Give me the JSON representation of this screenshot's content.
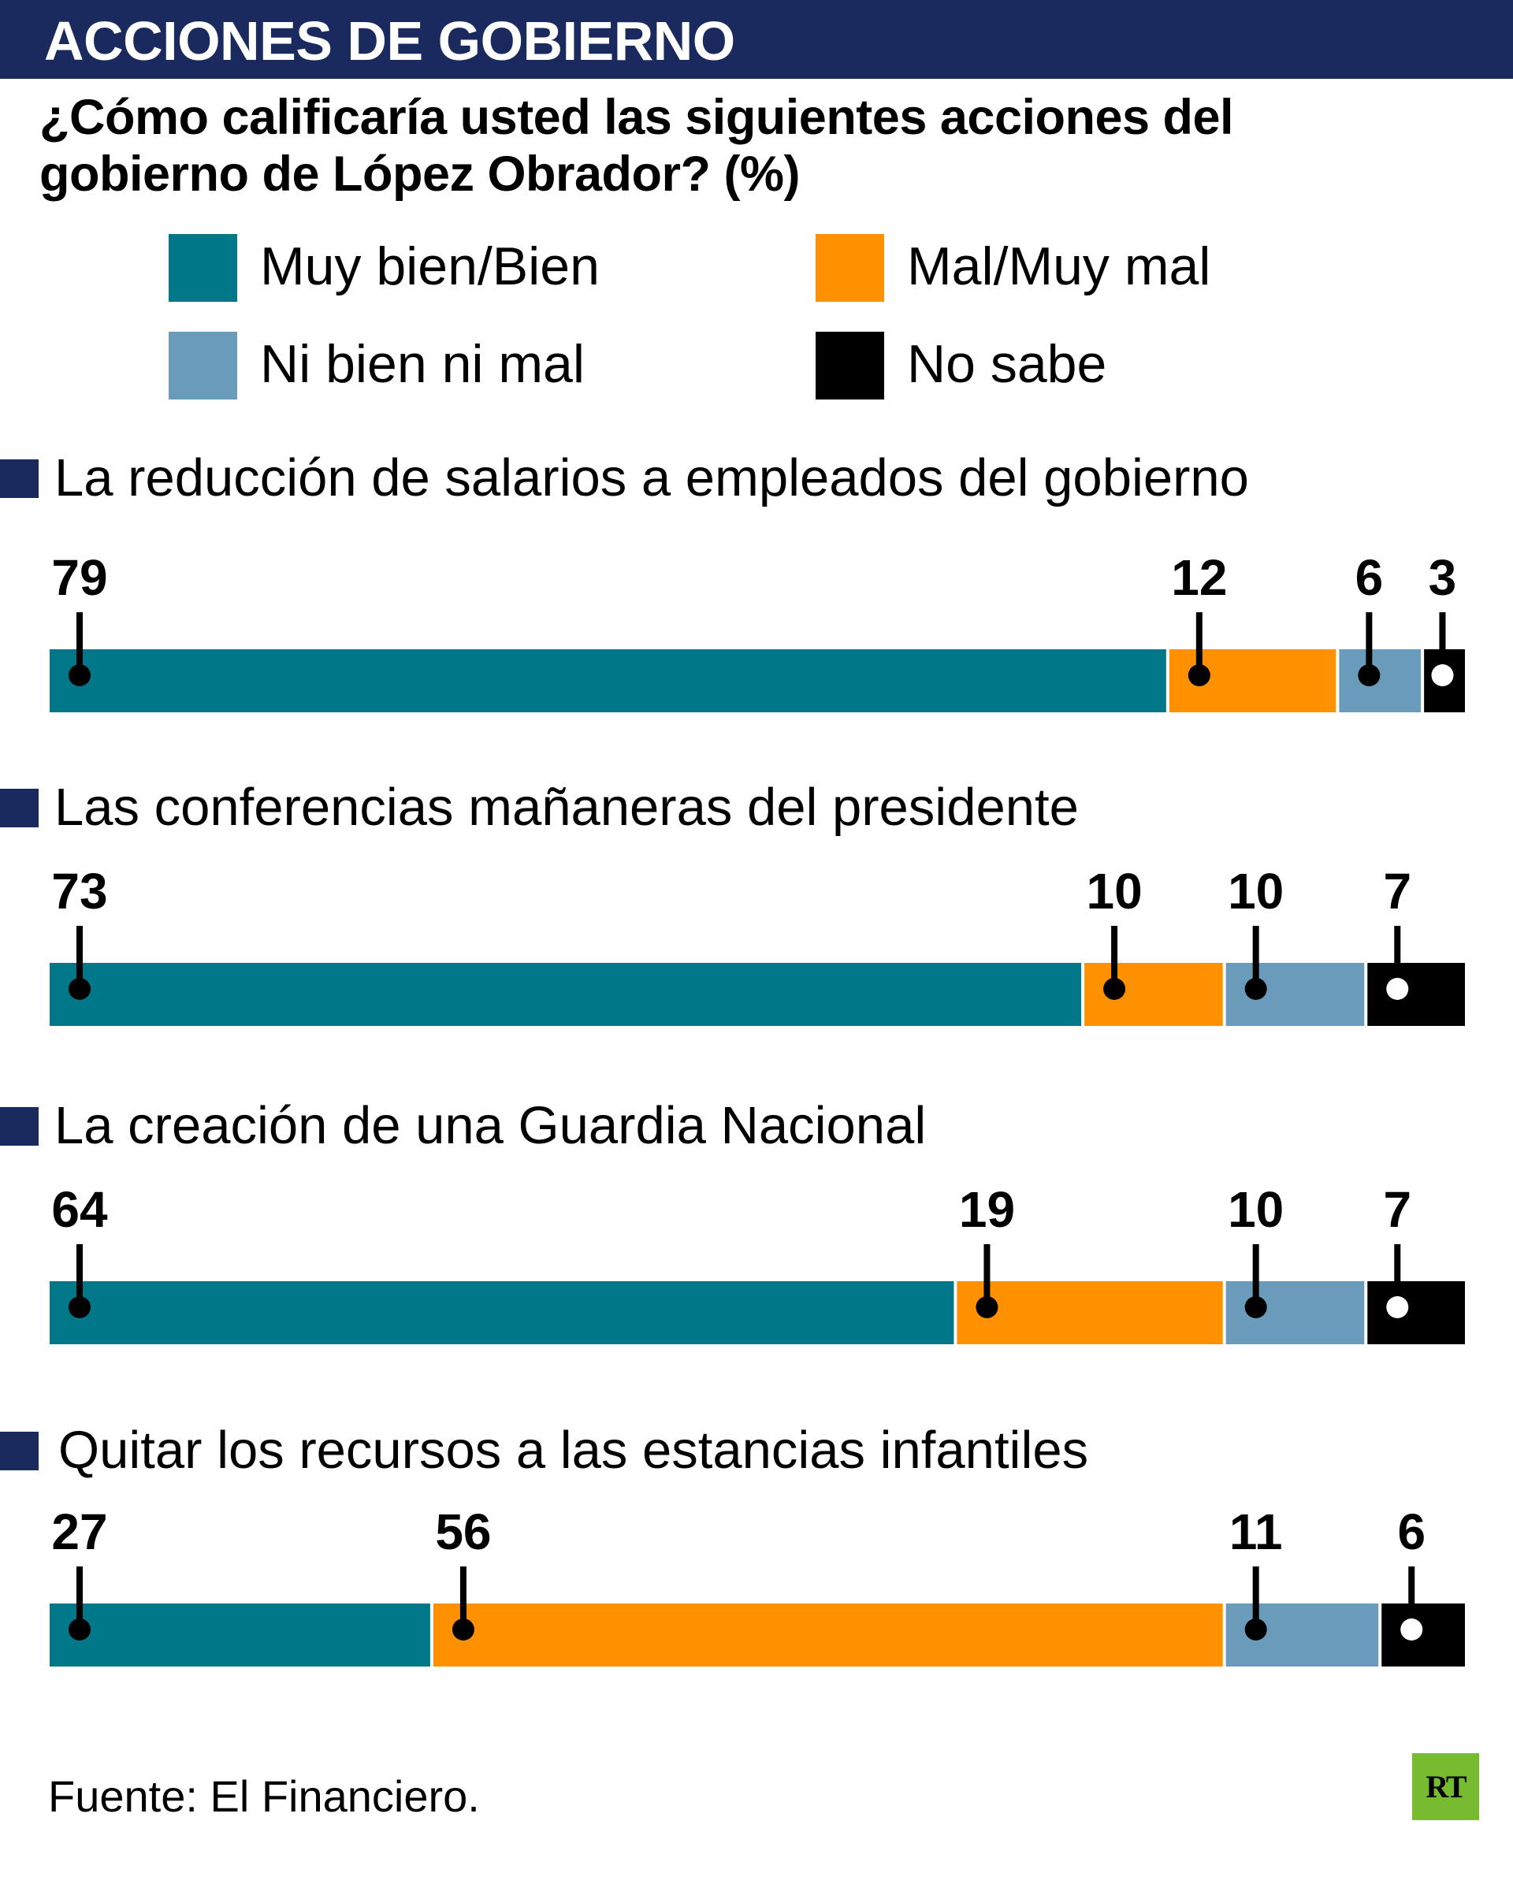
{
  "header": {
    "title": "ACCIONES DE GOBIERNO"
  },
  "subtitle": {
    "line1": "¿Cómo calificaría usted las siguientes acciones del",
    "line2": "gobierno de López Obrador? (%)"
  },
  "colors": {
    "navy": "#1b2a5e",
    "muy_bien": "#00788a",
    "mal": "#ff9000",
    "ni_bien": "#6b9bba",
    "no_sabe": "#000000",
    "logo_green": "#77bc2f"
  },
  "chart_data": {
    "type": "bar",
    "orientation": "horizontal",
    "stacked": true,
    "title": "ACCIONES DE GOBIERNO",
    "subtitle": "¿Cómo calificaría usted las siguientes acciones del gobierno de López Obrador? (%)",
    "xlim": [
      0,
      100
    ],
    "unit": "%",
    "legend": [
      {
        "key": "muy_bien",
        "label": "Muy bien/Bien",
        "color": "#00788a"
      },
      {
        "key": "mal",
        "label": "Mal/Muy mal",
        "color": "#ff9000"
      },
      {
        "key": "ni_bien",
        "label": "Ni bien ni mal",
        "color": "#6b9bba"
      },
      {
        "key": "no_sabe",
        "label": "No sabe",
        "color": "#000000"
      }
    ],
    "legend_placement": "top",
    "categories": [
      "La reducción de salarios a empleados del gobierno",
      "Las conferencias mañaneras del presidente",
      "La creación de una Guardia Nacional",
      "Quitar los recursos a las estancias infantiles"
    ],
    "series": [
      {
        "name": "Muy bien/Bien",
        "values": [
          79,
          73,
          64,
          27
        ]
      },
      {
        "name": "Mal/Muy mal",
        "values": [
          12,
          10,
          19,
          56
        ]
      },
      {
        "name": "Ni bien ni mal",
        "values": [
          6,
          10,
          10,
          11
        ]
      },
      {
        "name": "No sabe",
        "values": [
          3,
          7,
          7,
          6
        ]
      }
    ]
  },
  "footer": {
    "source": "Fuente: El Financiero."
  },
  "logo": {
    "text": "RT"
  }
}
